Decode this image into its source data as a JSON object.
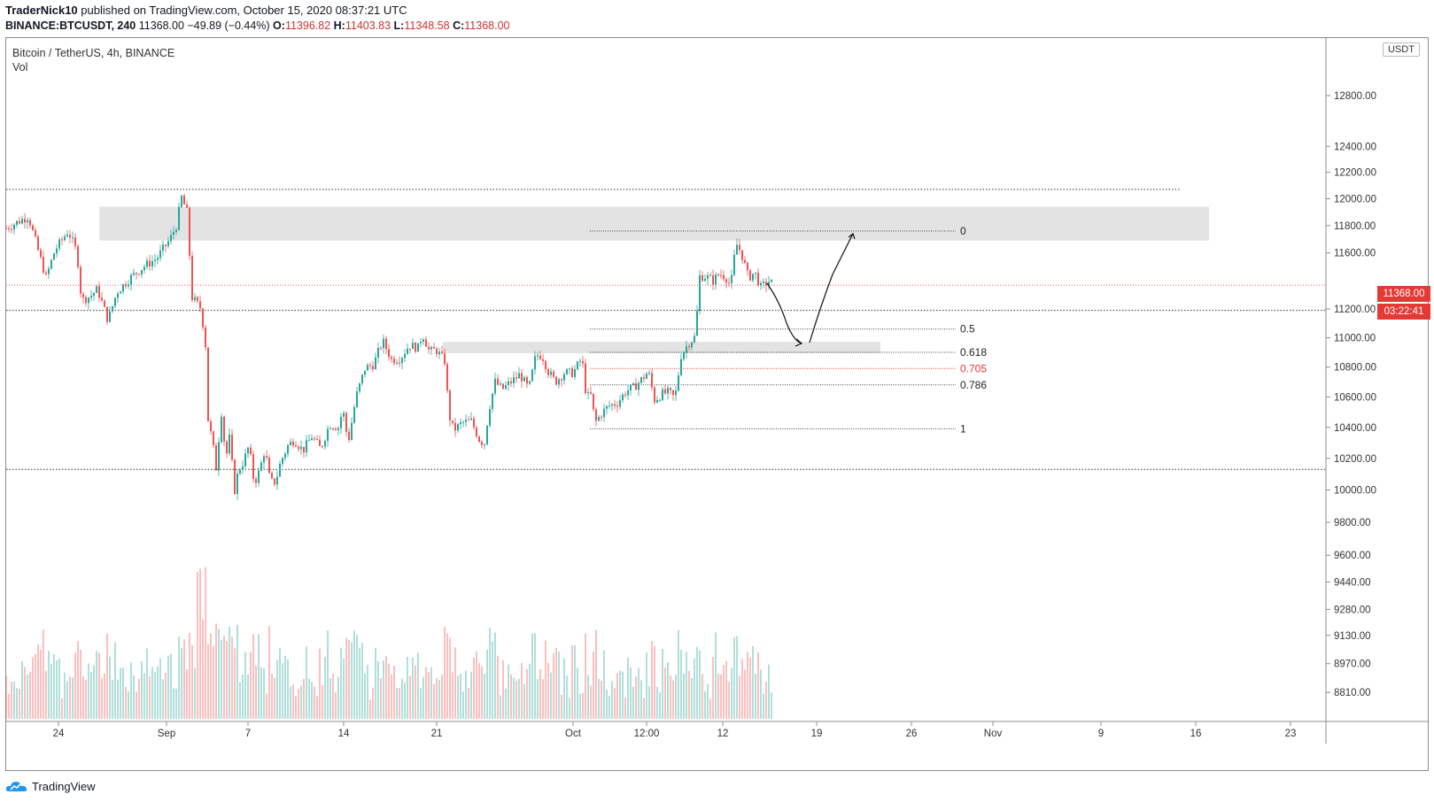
{
  "header": {
    "author": "TraderNick10",
    "published_text": "published on TradingView.com, October 15, 2020 08:37:21 UTC",
    "symbol_line": "BINANCE:BTCUSDT, 240",
    "last": "11368.00",
    "change": "−49.89 (−0.44%)",
    "o_label": "O:",
    "o": "11396.82",
    "h_label": "H:",
    "h": "11403.83",
    "l_label": "L:",
    "l": "11348.58",
    "c_label": "C:",
    "c": "11368.00"
  },
  "legend": {
    "title": "Bitcoin / TetherUS, 4h, BINANCE",
    "indicator": "Vol"
  },
  "price_scale": {
    "currency": "USDT",
    "last_price": "11368.00",
    "countdown": "03:22:41"
  },
  "footer": {
    "brand": "TradingView",
    "logo_icon": "tradingview-cloud-icon"
  },
  "colors": {
    "up": "#26a69a",
    "down": "#ef5350",
    "fib_705": "#e53935",
    "zone": "#e3e3e3"
  },
  "chart_data": {
    "type": "candlestick",
    "title": "Bitcoin / TetherUS, 4h, BINANCE",
    "interval": "4h",
    "y_axis": {
      "ticks": [
        "12800.00",
        "12400.00",
        "12200.00",
        "12000.00",
        "11800.00",
        "11600.00",
        "11200.00",
        "11000.00",
        "10800.00",
        "10600.00",
        "10400.00",
        "10200.00",
        "10000.00",
        "9800.00",
        "9600.00",
        "9440.00",
        "9280.00",
        "9130.00",
        "8970.00",
        "8810.00"
      ],
      "scale": "log"
    },
    "x_axis": {
      "ticks": [
        "24",
        "Sep",
        "7",
        "14",
        "21",
        "Oct",
        "12:00",
        "12",
        "19",
        "26",
        "Nov",
        "9",
        "16",
        "23"
      ]
    },
    "price_path": [
      [
        0,
        11780
      ],
      [
        25,
        11870
      ],
      [
        35,
        11640
      ],
      [
        45,
        11420
      ],
      [
        55,
        11620
      ],
      [
        70,
        11760
      ],
      [
        80,
        11600
      ],
      [
        85,
        11260
      ],
      [
        95,
        11290
      ],
      [
        103,
        11340
      ],
      [
        115,
        11120
      ],
      [
        125,
        11320
      ],
      [
        140,
        11420
      ],
      [
        155,
        11500
      ],
      [
        170,
        11560
      ],
      [
        185,
        11700
      ],
      [
        192,
        11800
      ],
      [
        198,
        12010
      ],
      [
        204,
        11900
      ],
      [
        210,
        11280
      ],
      [
        220,
        11200
      ],
      [
        225,
        10950
      ],
      [
        228,
        10450
      ],
      [
        233,
        10300
      ],
      [
        238,
        10100
      ],
      [
        242,
        10560
      ],
      [
        248,
        10200
      ],
      [
        252,
        10330
      ],
      [
        258,
        10000
      ],
      [
        262,
        10120
      ],
      [
        268,
        10180
      ],
      [
        274,
        10280
      ],
      [
        280,
        10040
      ],
      [
        286,
        10120
      ],
      [
        292,
        10260
      ],
      [
        298,
        10050
      ],
      [
        304,
        10050
      ],
      [
        310,
        10180
      ],
      [
        318,
        10280
      ],
      [
        325,
        10320
      ],
      [
        335,
        10250
      ],
      [
        345,
        10340
      ],
      [
        355,
        10260
      ],
      [
        365,
        10420
      ],
      [
        375,
        10400
      ],
      [
        380,
        10520
      ],
      [
        386,
        10300
      ],
      [
        395,
        10600
      ],
      [
        405,
        10790
      ],
      [
        415,
        10820
      ],
      [
        425,
        10980
      ],
      [
        435,
        10850
      ],
      [
        445,
        10860
      ],
      [
        455,
        10950
      ],
      [
        465,
        10930
      ],
      [
        470,
        11030
      ],
      [
        478,
        10900
      ],
      [
        485,
        10920
      ],
      [
        495,
        10840
      ],
      [
        500,
        10480
      ],
      [
        505,
        10380
      ],
      [
        515,
        10430
      ],
      [
        525,
        10440
      ],
      [
        535,
        10310
      ],
      [
        540,
        10300
      ],
      [
        545,
        10520
      ],
      [
        552,
        10700
      ],
      [
        560,
        10650
      ],
      [
        570,
        10700
      ],
      [
        580,
        10750
      ],
      [
        590,
        10650
      ],
      [
        598,
        10880
      ],
      [
        605,
        10880
      ],
      [
        612,
        10770
      ],
      [
        620,
        10700
      ],
      [
        630,
        10760
      ],
      [
        640,
        10760
      ],
      [
        650,
        10860
      ],
      [
        655,
        10600
      ],
      [
        660,
        10610
      ],
      [
        665,
        10430
      ],
      [
        672,
        10490
      ],
      [
        680,
        10540
      ],
      [
        690,
        10560
      ],
      [
        700,
        10640
      ],
      [
        708,
        10660
      ],
      [
        718,
        10720
      ],
      [
        725,
        10770
      ],
      [
        732,
        10580
      ],
      [
        740,
        10620
      ],
      [
        748,
        10630
      ],
      [
        755,
        10590
      ],
      [
        762,
        10880
      ],
      [
        770,
        10960
      ],
      [
        778,
        11010
      ],
      [
        783,
        11430
      ],
      [
        790,
        11430
      ],
      [
        798,
        11400
      ],
      [
        805,
        11450
      ],
      [
        812,
        11430
      ],
      [
        818,
        11360
      ],
      [
        824,
        11670
      ],
      [
        830,
        11600
      ],
      [
        838,
        11420
      ],
      [
        845,
        11460
      ],
      [
        852,
        11350
      ],
      [
        858,
        11380
      ],
      [
        862,
        11400
      ],
      [
        866,
        11368
      ]
    ],
    "volume_relative": "bars under price, tallest spike near 2–3 Sep",
    "current_price": 11368.0,
    "horizontal_levels": [
      12070,
      11190,
      10130
    ],
    "supply_zone": {
      "top": 11940,
      "bottom": 11690
    },
    "demand_zone": {
      "top": 10960,
      "bottom": 10930
    },
    "fibonacci": {
      "levels": [
        {
          "label": "0",
          "price": 11760
        },
        {
          "label": "0.5",
          "price": 11060
        },
        {
          "label": "0.618",
          "price": 10900
        },
        {
          "label": "0.705",
          "price": 10790
        },
        {
          "label": "0.786",
          "price": 10680
        },
        {
          "label": "1",
          "price": 10390
        }
      ]
    },
    "projection": "price dips to ~10960 zone then rallies toward ~11760"
  }
}
